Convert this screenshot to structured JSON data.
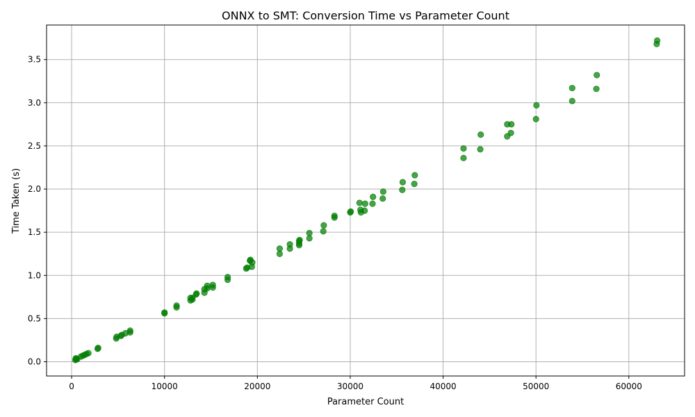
{
  "chart_data": {
    "type": "scatter",
    "title": "ONNX to SMT: Conversion Time vs Parameter Count",
    "xlabel": "Parameter Count",
    "ylabel": "Time Taken (s)",
    "xlim": [
      -2700,
      66000
    ],
    "ylim": [
      -0.165,
      3.9
    ],
    "xticks": [
      0,
      10000,
      20000,
      30000,
      40000,
      50000,
      60000
    ],
    "xtick_labels": [
      "0",
      "10000",
      "20000",
      "30000",
      "40000",
      "50000",
      "60000"
    ],
    "yticks": [
      0.0,
      0.5,
      1.0,
      1.5,
      2.0,
      2.5,
      3.0,
      3.5
    ],
    "ytick_labels": [
      "0.0",
      "0.5",
      "1.0",
      "1.5",
      "2.0",
      "2.5",
      "3.0",
      "3.5"
    ],
    "grid": true,
    "color": "#008000",
    "series": [
      {
        "points": [
          [
            400,
            0.02
          ],
          [
            450,
            0.04
          ],
          [
            500,
            0.03
          ],
          [
            600,
            0.03
          ],
          [
            1000,
            0.06
          ],
          [
            1200,
            0.07
          ],
          [
            1400,
            0.08
          ],
          [
            1600,
            0.09
          ],
          [
            1800,
            0.1
          ],
          [
            2800,
            0.15
          ],
          [
            2850,
            0.16
          ],
          [
            4800,
            0.27
          ],
          [
            4850,
            0.29
          ],
          [
            5300,
            0.3
          ],
          [
            5400,
            0.31
          ],
          [
            5800,
            0.33
          ],
          [
            6300,
            0.34
          ],
          [
            6300,
            0.36
          ],
          [
            10000,
            0.56
          ],
          [
            10000,
            0.57
          ],
          [
            11300,
            0.63
          ],
          [
            11300,
            0.65
          ],
          [
            12800,
            0.71
          ],
          [
            12800,
            0.74
          ],
          [
            13000,
            0.72
          ],
          [
            13000,
            0.74
          ],
          [
            13400,
            0.78
          ],
          [
            13450,
            0.79
          ],
          [
            14300,
            0.8
          ],
          [
            14300,
            0.84
          ],
          [
            14600,
            0.85
          ],
          [
            14600,
            0.88
          ],
          [
            15200,
            0.86
          ],
          [
            15200,
            0.89
          ],
          [
            16800,
            0.95
          ],
          [
            16800,
            0.98
          ],
          [
            18800,
            1.08
          ],
          [
            18900,
            1.09
          ],
          [
            19200,
            1.17
          ],
          [
            19250,
            1.18
          ],
          [
            19400,
            1.1
          ],
          [
            19450,
            1.15
          ],
          [
            22400,
            1.25
          ],
          [
            22400,
            1.31
          ],
          [
            23500,
            1.31
          ],
          [
            23500,
            1.36
          ],
          [
            24500,
            1.35
          ],
          [
            24500,
            1.37
          ],
          [
            24500,
            1.4
          ],
          [
            24550,
            1.41
          ],
          [
            25600,
            1.43
          ],
          [
            25600,
            1.49
          ],
          [
            27100,
            1.51
          ],
          [
            27150,
            1.58
          ],
          [
            28300,
            1.67
          ],
          [
            28300,
            1.69
          ],
          [
            30000,
            1.73
          ],
          [
            30050,
            1.74
          ],
          [
            31000,
            1.84
          ],
          [
            31100,
            1.76
          ],
          [
            31150,
            1.73
          ],
          [
            31550,
            1.75
          ],
          [
            31600,
            1.83
          ],
          [
            32400,
            1.83
          ],
          [
            32450,
            1.91
          ],
          [
            33500,
            1.89
          ],
          [
            33550,
            1.97
          ],
          [
            35600,
            1.99
          ],
          [
            35650,
            2.08
          ],
          [
            36900,
            2.06
          ],
          [
            36950,
            2.16
          ],
          [
            42200,
            2.36
          ],
          [
            42200,
            2.47
          ],
          [
            44000,
            2.46
          ],
          [
            44050,
            2.63
          ],
          [
            46900,
            2.61
          ],
          [
            46900,
            2.75
          ],
          [
            47300,
            2.65
          ],
          [
            47350,
            2.75
          ],
          [
            50000,
            2.81
          ],
          [
            50050,
            2.97
          ],
          [
            53900,
            3.02
          ],
          [
            53900,
            3.17
          ],
          [
            56500,
            3.16
          ],
          [
            56550,
            3.32
          ],
          [
            63000,
            3.68
          ],
          [
            63050,
            3.72
          ]
        ]
      }
    ]
  }
}
